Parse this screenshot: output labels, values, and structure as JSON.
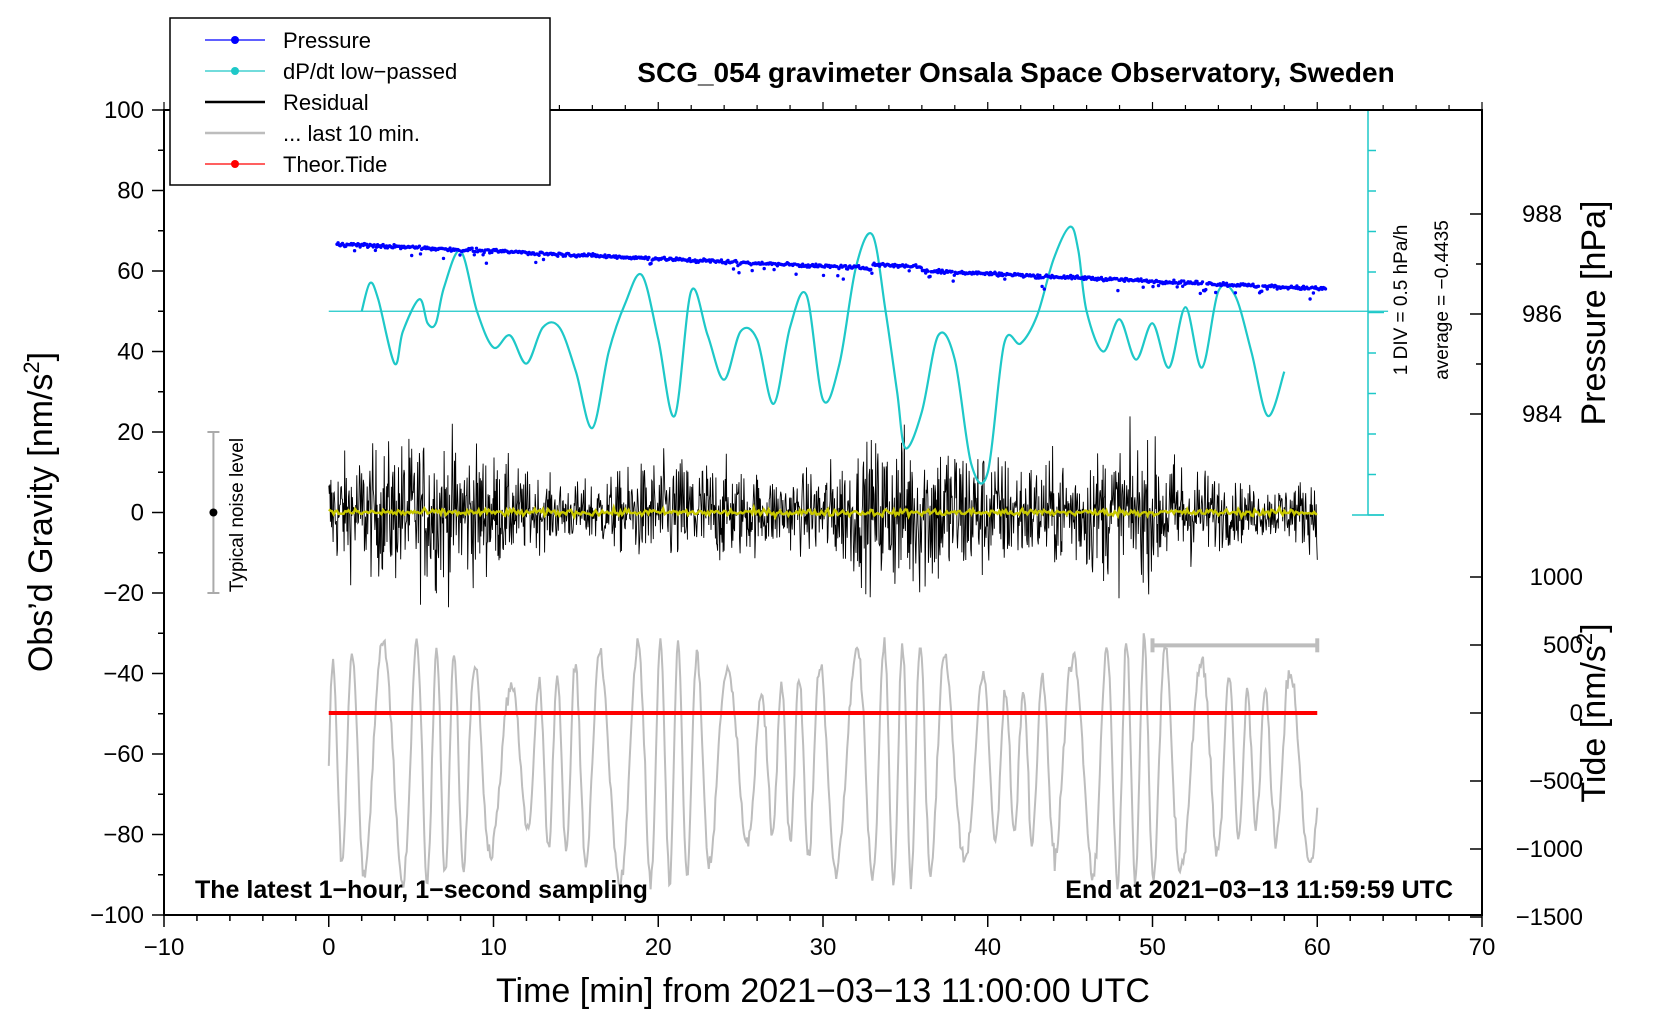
{
  "chart_data": {
    "type": "line",
    "title": "SCG_054 gravimeter Onsala Space Observatory, Sweden",
    "xlabel": "Time [min] from 2021−03−13 11:00:00 UTC",
    "xlim": [
      -10,
      70
    ],
    "x_ticks": [
      "−10",
      "0",
      "10",
      "20",
      "30",
      "40",
      "50",
      "60",
      "70"
    ],
    "left_axis": {
      "label_main": "Obs’d Gravity [nm/s",
      "label_sup": "2",
      "label_end": "]",
      "ylim": [
        -100,
        100
      ],
      "ticks": [
        "100",
        "80",
        "60",
        "40",
        "20",
        "0",
        "−20",
        "−40",
        "−60",
        "−80",
        "−100"
      ]
    },
    "pressure_axis": {
      "label": "Pressure [hPa]",
      "ticks": [
        "988",
        "986",
        "984"
      ],
      "tick_values": [
        988,
        986,
        984
      ]
    },
    "tide_axis": {
      "label_main": "Tide [nm/s",
      "label_sup": "2",
      "label_end": "]",
      "ticks": [
        "1000",
        "500",
        "0",
        "−500",
        "−1000",
        "−1500"
      ],
      "tick_values": [
        1000,
        500,
        0,
        -500,
        -1000,
        -1500
      ]
    },
    "dpdt_scale": {
      "div_text": "1 DIV = 0.5 hPa/h",
      "average_text": "average = −0.4435",
      "average": -0.4435
    },
    "noise_bar": {
      "label": "Typical noise level",
      "center": 0,
      "half_range": 20,
      "x": -7
    },
    "legend": [
      {
        "label": "Pressure",
        "color": "#0000ff",
        "style": "line-dot"
      },
      {
        "label": "dP/dt low−passed",
        "color": "#1ec8c8",
        "style": "line-dot"
      },
      {
        "label": "Residual",
        "color": "#000000",
        "style": "line"
      },
      {
        "label": "... last 10 min.",
        "color": "#bdbdbd",
        "style": "line"
      },
      {
        "label": "Theor.Tide",
        "color": "#ff0000",
        "style": "line-dot"
      }
    ],
    "annotation_left": "The latest 1−hour, 1−second sampling",
    "annotation_right": "End at 2021−03−13 11:59:59 UTC",
    "series": [
      {
        "name": "Pressure",
        "axis": "pressure",
        "x_range": [
          0.5,
          60.5
        ],
        "start": 987.4,
        "end": 986.5,
        "units": "hPa"
      },
      {
        "name": "dP/dt low-passed",
        "axis": "dpdt",
        "zero_line": 986,
        "x": [
          2,
          2.5,
          3,
          4,
          4.5,
          5.5,
          6,
          6.5,
          7,
          8,
          9,
          10,
          11,
          12,
          13,
          14,
          15,
          16,
          17,
          18,
          19,
          20,
          21,
          22,
          23,
          24,
          25,
          26,
          27,
          28,
          29,
          30,
          31,
          32,
          33,
          33.8,
          34.5,
          35,
          36,
          37,
          38,
          39,
          40,
          41,
          42,
          43,
          44,
          45,
          45.5,
          46,
          47,
          48,
          49,
          50,
          51,
          52,
          53,
          54,
          55,
          56,
          57,
          58
        ],
        "y": [
          50,
          57,
          53,
          37,
          45,
          53,
          47,
          47,
          56,
          65,
          50,
          41,
          44,
          37,
          46,
          46,
          35,
          21,
          40,
          52,
          59,
          43,
          24,
          55,
          44,
          33,
          45,
          43,
          27,
          46,
          54,
          28,
          37,
          61,
          69,
          50,
          30,
          16,
          25,
          44,
          38,
          12,
          10,
          42,
          42,
          49,
          63,
          71,
          65,
          50,
          40,
          48,
          38,
          47,
          36,
          51,
          36,
          55,
          54,
          40,
          24,
          35
        ]
      },
      {
        "name": "Residual",
        "axis": "gravity",
        "x_range": [
          0,
          60
        ],
        "center": 0,
        "amplitude": 25
      },
      {
        "name": "Yellow smoothed residual",
        "axis": "gravity",
        "x_range": [
          0,
          60
        ],
        "center": 0,
        "amplitude": 1.5
      },
      {
        "name": "... last 10 min.",
        "axis": "gravity",
        "x_range": [
          0,
          60
        ],
        "center": -62,
        "amplitude": 30,
        "scale_bar_x": [
          50,
          60
        ],
        "scale_bar_y": -33
      },
      {
        "name": "Theor.Tide",
        "axis": "tide",
        "x_range": [
          0,
          60
        ],
        "values_start": 0,
        "values_end": 0
      }
    ]
  }
}
